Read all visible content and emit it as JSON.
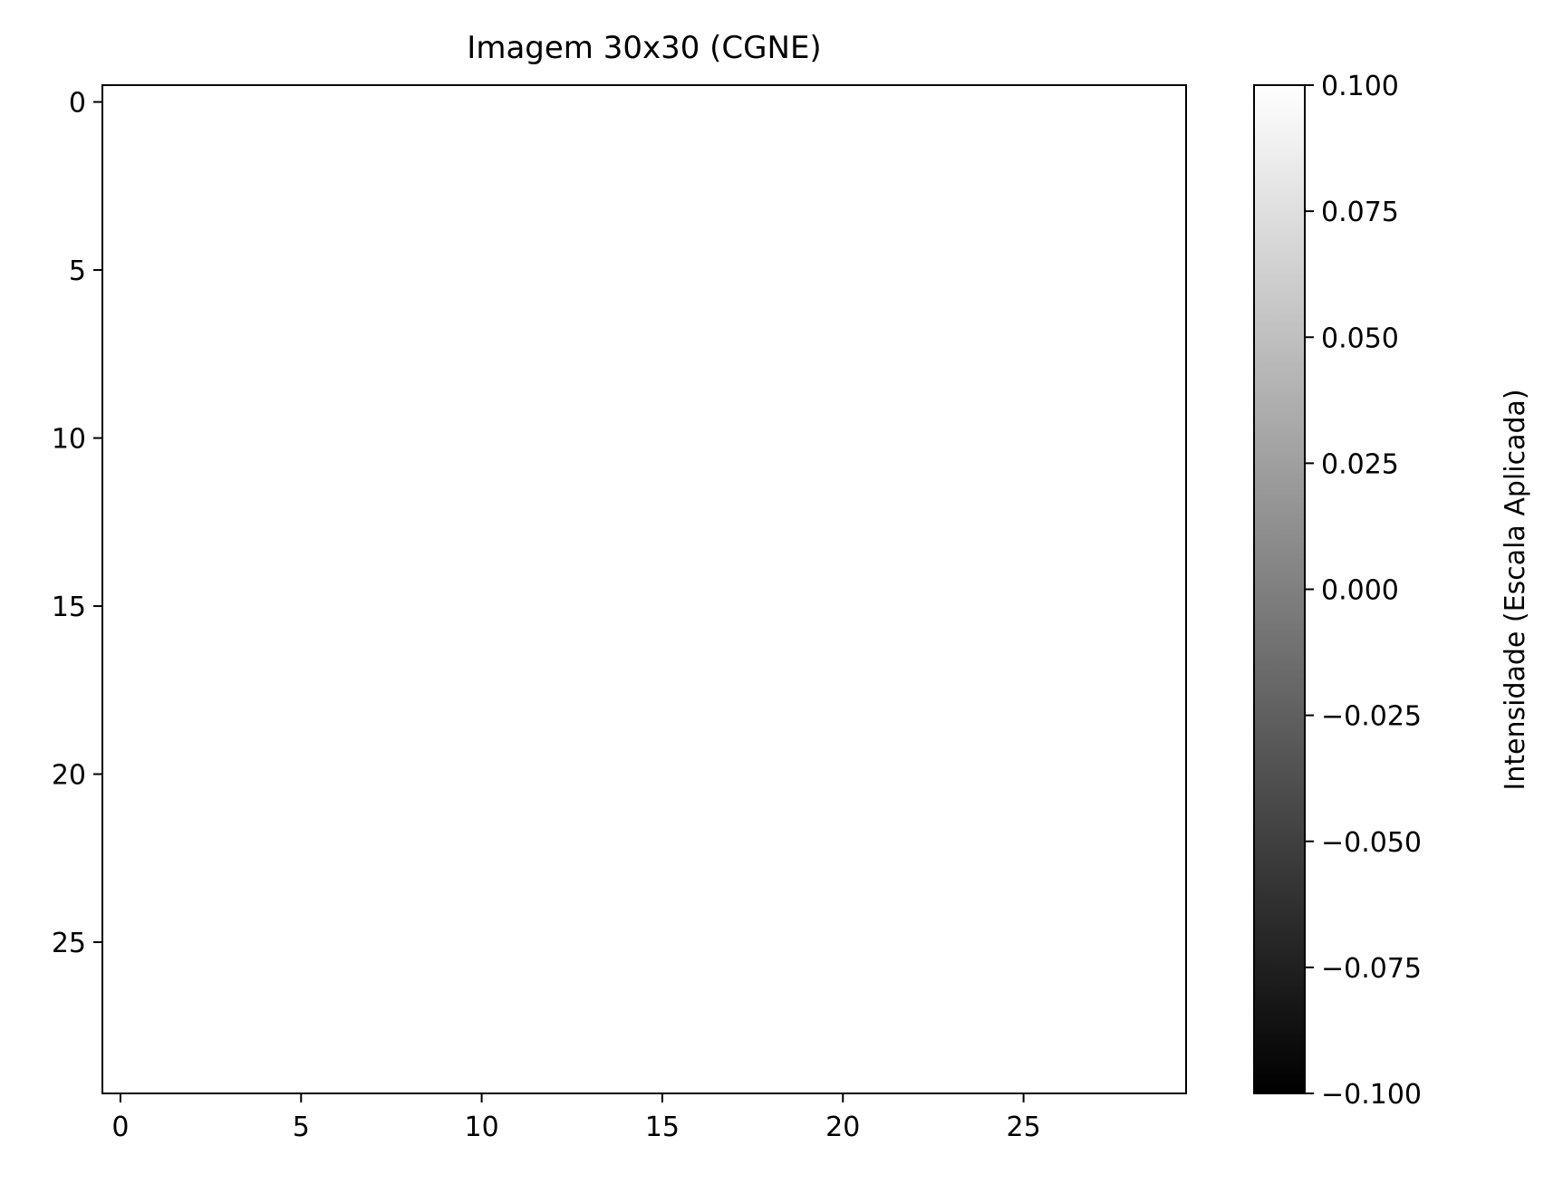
{
  "chart_data": {
    "type": "heatmap",
    "title": "Imagem 30x30 (CGNE)",
    "xlabel": "",
    "ylabel": "",
    "colorbar_label": "Intensidade (Escala Aplicada)",
    "colormap": "gray",
    "x_range": [
      -0.5,
      29.5
    ],
    "y_range": [
      29.5,
      -0.5
    ],
    "x_ticks": [
      0,
      5,
      10,
      15,
      20,
      25
    ],
    "x_tick_labels": [
      "0",
      "5",
      "10",
      "15",
      "20",
      "25"
    ],
    "y_ticks": [
      0,
      5,
      10,
      15,
      20,
      25
    ],
    "y_tick_labels": [
      "0",
      "5",
      "10",
      "15",
      "20",
      "25"
    ],
    "colorbar_range": [
      -0.1,
      0.1
    ],
    "colorbar_ticks": [
      -0.1,
      -0.075,
      -0.05,
      -0.025,
      0.0,
      0.025,
      0.05,
      0.075,
      0.1
    ],
    "colorbar_tick_labels": [
      "−0.100",
      "−0.075",
      "−0.050",
      "−0.025",
      "0.000",
      "0.025",
      "0.050",
      "0.075",
      "0.100"
    ],
    "image_size": [
      30,
      30
    ],
    "image_fill_color": "#ffffff",
    "grid": false
  }
}
